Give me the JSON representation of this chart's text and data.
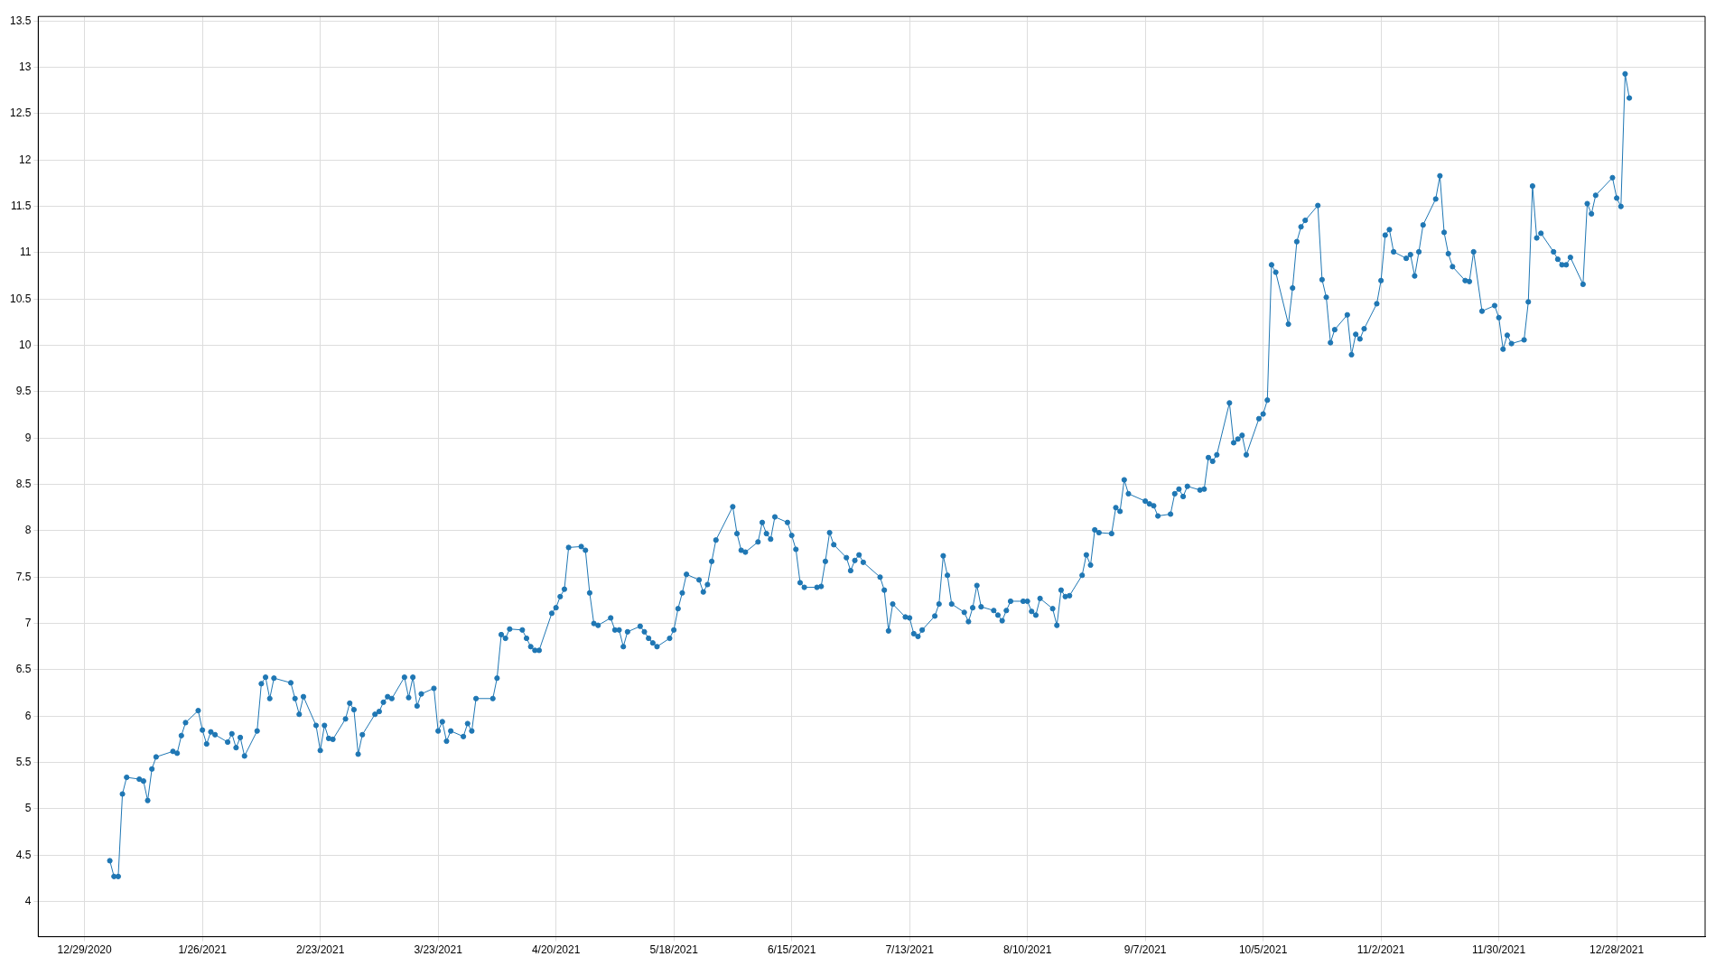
{
  "chart_data": {
    "type": "line",
    "color": "#1f77b4",
    "marker": "circle",
    "line_style": "solid",
    "grid": true,
    "legend": false,
    "xlim": [
      "2020-12-18",
      "2022-01-18"
    ],
    "xticks": [
      {
        "value": "2020-12-29",
        "label": "12/29/2020"
      },
      {
        "value": "2021-01-26",
        "label": "1/26/2021"
      },
      {
        "value": "2021-02-23",
        "label": "2/23/2021"
      },
      {
        "value": "2021-03-23",
        "label": "3/23/2021"
      },
      {
        "value": "2021-04-20",
        "label": "4/20/2021"
      },
      {
        "value": "2021-05-18",
        "label": "5/18/2021"
      },
      {
        "value": "2021-06-15",
        "label": "6/15/2021"
      },
      {
        "value": "2021-07-13",
        "label": "7/13/2021"
      },
      {
        "value": "2021-08-10",
        "label": "8/10/2021"
      },
      {
        "value": "2021-09-07",
        "label": "9/7/2021"
      },
      {
        "value": "2021-10-05",
        "label": "10/5/2021"
      },
      {
        "value": "2021-11-02",
        "label": "11/2/2021"
      },
      {
        "value": "2021-11-30",
        "label": "11/30/2021"
      },
      {
        "value": "2021-12-28",
        "label": "12/28/2021"
      }
    ],
    "ylim": [
      3.62,
      13.55
    ],
    "yticks": [
      4,
      4.5,
      5,
      5.5,
      6,
      6.5,
      7,
      7.5,
      8,
      8.5,
      9,
      9.5,
      10,
      10.5,
      11,
      11.5,
      12,
      12.5,
      13,
      13.5
    ],
    "x": [
      "2021-01-04",
      "2021-01-05",
      "2021-01-06",
      "2021-01-07",
      "2021-01-08",
      "2021-01-11",
      "2021-01-12",
      "2021-01-13",
      "2021-01-14",
      "2021-01-15",
      "2021-01-19",
      "2021-01-20",
      "2021-01-21",
      "2021-01-22",
      "2021-01-25",
      "2021-01-26",
      "2021-01-27",
      "2021-01-28",
      "2021-01-29",
      "2021-02-01",
      "2021-02-02",
      "2021-02-03",
      "2021-02-04",
      "2021-02-05",
      "2021-02-08",
      "2021-02-09",
      "2021-02-10",
      "2021-02-11",
      "2021-02-12",
      "2021-02-16",
      "2021-02-17",
      "2021-02-18",
      "2021-02-19",
      "2021-02-22",
      "2021-02-23",
      "2021-02-24",
      "2021-02-25",
      "2021-02-26",
      "2021-03-01",
      "2021-03-02",
      "2021-03-03",
      "2021-03-04",
      "2021-03-05",
      "2021-03-08",
      "2021-03-09",
      "2021-03-10",
      "2021-03-11",
      "2021-03-12",
      "2021-03-15",
      "2021-03-16",
      "2021-03-17",
      "2021-03-18",
      "2021-03-19",
      "2021-03-22",
      "2021-03-23",
      "2021-03-24",
      "2021-03-25",
      "2021-03-26",
      "2021-03-29",
      "2021-03-30",
      "2021-03-31",
      "2021-04-01",
      "2021-04-05",
      "2021-04-06",
      "2021-04-07",
      "2021-04-08",
      "2021-04-09",
      "2021-04-12",
      "2021-04-13",
      "2021-04-14",
      "2021-04-15",
      "2021-04-16",
      "2021-04-19",
      "2021-04-20",
      "2021-04-21",
      "2021-04-22",
      "2021-04-23",
      "2021-04-26",
      "2021-04-27",
      "2021-04-28",
      "2021-04-29",
      "2021-04-30",
      "2021-05-03",
      "2021-05-04",
      "2021-05-05",
      "2021-05-06",
      "2021-05-07",
      "2021-05-10",
      "2021-05-11",
      "2021-05-12",
      "2021-05-13",
      "2021-05-14",
      "2021-05-17",
      "2021-05-18",
      "2021-05-19",
      "2021-05-20",
      "2021-05-21",
      "2021-05-24",
      "2021-05-25",
      "2021-05-26",
      "2021-05-27",
      "2021-05-28",
      "2021-06-01",
      "2021-06-02",
      "2021-06-03",
      "2021-06-04",
      "2021-06-07",
      "2021-06-08",
      "2021-06-09",
      "2021-06-10",
      "2021-06-11",
      "2021-06-14",
      "2021-06-15",
      "2021-06-16",
      "2021-06-17",
      "2021-06-18",
      "2021-06-21",
      "2021-06-22",
      "2021-06-23",
      "2021-06-24",
      "2021-06-25",
      "2021-06-28",
      "2021-06-29",
      "2021-06-30",
      "2021-07-01",
      "2021-07-02",
      "2021-07-06",
      "2021-07-07",
      "2021-07-08",
      "2021-07-09",
      "2021-07-12",
      "2021-07-13",
      "2021-07-14",
      "2021-07-15",
      "2021-07-16",
      "2021-07-19",
      "2021-07-20",
      "2021-07-21",
      "2021-07-22",
      "2021-07-23",
      "2021-07-26",
      "2021-07-27",
      "2021-07-28",
      "2021-07-29",
      "2021-07-30",
      "2021-08-02",
      "2021-08-03",
      "2021-08-04",
      "2021-08-05",
      "2021-08-06",
      "2021-08-09",
      "2021-08-10",
      "2021-08-11",
      "2021-08-12",
      "2021-08-13",
      "2021-08-16",
      "2021-08-17",
      "2021-08-18",
      "2021-08-19",
      "2021-08-20",
      "2021-08-23",
      "2021-08-24",
      "2021-08-25",
      "2021-08-26",
      "2021-08-27",
      "2021-08-30",
      "2021-08-31",
      "2021-09-01",
      "2021-09-02",
      "2021-09-03",
      "2021-09-07",
      "2021-09-08",
      "2021-09-09",
      "2021-09-10",
      "2021-09-13",
      "2021-09-14",
      "2021-09-15",
      "2021-09-16",
      "2021-09-17",
      "2021-09-20",
      "2021-09-21",
      "2021-09-22",
      "2021-09-23",
      "2021-09-24",
      "2021-09-27",
      "2021-09-28",
      "2021-09-29",
      "2021-09-30",
      "2021-10-01",
      "2021-10-04",
      "2021-10-05",
      "2021-10-06",
      "2021-10-07",
      "2021-10-08",
      "2021-10-11",
      "2021-10-12",
      "2021-10-13",
      "2021-10-14",
      "2021-10-15",
      "2021-10-18",
      "2021-10-19",
      "2021-10-20",
      "2021-10-21",
      "2021-10-22",
      "2021-10-25",
      "2021-10-26",
      "2021-10-27",
      "2021-10-28",
      "2021-10-29",
      "2021-11-01",
      "2021-11-02",
      "2021-11-03",
      "2021-11-04",
      "2021-11-05",
      "2021-11-08",
      "2021-11-09",
      "2021-11-10",
      "2021-11-11",
      "2021-11-12",
      "2021-11-15",
      "2021-11-16",
      "2021-11-17",
      "2021-11-18",
      "2021-11-19",
      "2021-11-22",
      "2021-11-23",
      "2021-11-24",
      "2021-11-26",
      "2021-11-29",
      "2021-11-30",
      "2021-12-01",
      "2021-12-02",
      "2021-12-03",
      "2021-12-06",
      "2021-12-07",
      "2021-12-08",
      "2021-12-09",
      "2021-12-10",
      "2021-12-13",
      "2021-12-14",
      "2021-12-15",
      "2021-12-16",
      "2021-12-17",
      "2021-12-20",
      "2021-12-21",
      "2021-12-22",
      "2021-12-23",
      "2021-12-27",
      "2021-12-28",
      "2021-12-29",
      "2021-12-30",
      "2021-12-31"
    ],
    "values": [
      4.44,
      4.27,
      4.27,
      5.16,
      5.34,
      5.32,
      5.3,
      5.09,
      5.43,
      5.56,
      5.62,
      5.6,
      5.79,
      5.93,
      6.06,
      5.85,
      5.7,
      5.83,
      5.8,
      5.72,
      5.81,
      5.66,
      5.77,
      5.57,
      5.84,
      6.35,
      6.42,
      6.19,
      6.41,
      6.36,
      6.19,
      6.02,
      6.21,
      5.9,
      5.63,
      5.9,
      5.76,
      5.75,
      5.97,
      6.14,
      6.07,
      5.59,
      5.8,
      6.02,
      6.05,
      6.15,
      6.21,
      6.19,
      6.42,
      6.2,
      6.42,
      6.11,
      6.24,
      6.3,
      5.84,
      5.94,
      5.73,
      5.84,
      5.78,
      5.92,
      5.84,
      6.19,
      6.19,
      6.41,
      6.88,
      6.84,
      6.94,
      6.93,
      6.84,
      6.75,
      6.71,
      6.71,
      7.11,
      7.17,
      7.29,
      7.37,
      7.82,
      7.83,
      7.79,
      7.33,
      7.0,
      6.98,
      7.06,
      6.93,
      6.93,
      6.75,
      6.91,
      6.97,
      6.91,
      6.84,
      6.79,
      6.75,
      6.84,
      6.93,
      7.16,
      7.33,
      7.53,
      7.47,
      7.34,
      7.42,
      7.67,
      7.9,
      8.26,
      7.97,
      7.79,
      7.77,
      7.88,
      8.09,
      7.97,
      7.91,
      8.15,
      8.09,
      7.95,
      7.8,
      7.44,
      7.39,
      7.39,
      7.4,
      7.67,
      7.98,
      7.85,
      7.71,
      7.57,
      7.68,
      7.74,
      7.66,
      7.5,
      7.36,
      6.92,
      7.21,
      7.07,
      7.06,
      6.89,
      6.86,
      6.93,
      7.08,
      7.21,
      7.73,
      7.52,
      7.21,
      7.12,
      7.02,
      7.17,
      7.41,
      7.18,
      7.14,
      7.09,
      7.03,
      7.14,
      7.24,
      7.24,
      7.24,
      7.13,
      7.09,
      7.27,
      7.16,
      6.98,
      7.36,
      7.29,
      7.3,
      7.52,
      7.74,
      7.63,
      8.01,
      7.98,
      7.97,
      8.25,
      8.21,
      8.55,
      8.4,
      8.32,
      8.29,
      8.27,
      8.16,
      8.18,
      8.4,
      8.45,
      8.37,
      8.48,
      8.44,
      8.45,
      8.79,
      8.75,
      8.82,
      9.38,
      8.95,
      8.99,
      9.03,
      8.82,
      9.21,
      9.26,
      9.41,
      10.87,
      10.79,
      10.23,
      10.62,
      11.12,
      11.28,
      11.35,
      11.51,
      10.71,
      10.52,
      10.03,
      10.17,
      10.33,
      9.9,
      10.12,
      10.07,
      10.18,
      10.45,
      10.7,
      11.19,
      11.25,
      11.01,
      10.94,
      10.98,
      10.75,
      11.01,
      11.3,
      11.58,
      11.83,
      11.22,
      10.99,
      10.85,
      10.7,
      10.69,
      11.01,
      10.37,
      10.43,
      10.3,
      9.96,
      10.11,
      10.02,
      10.06,
      10.47,
      11.72,
      11.16,
      11.21,
      11.01,
      10.93,
      10.87,
      10.87,
      10.95,
      10.66,
      11.53,
      11.42,
      11.62,
      11.81,
      11.59,
      11.5,
      12.93,
      12.67
    ]
  }
}
